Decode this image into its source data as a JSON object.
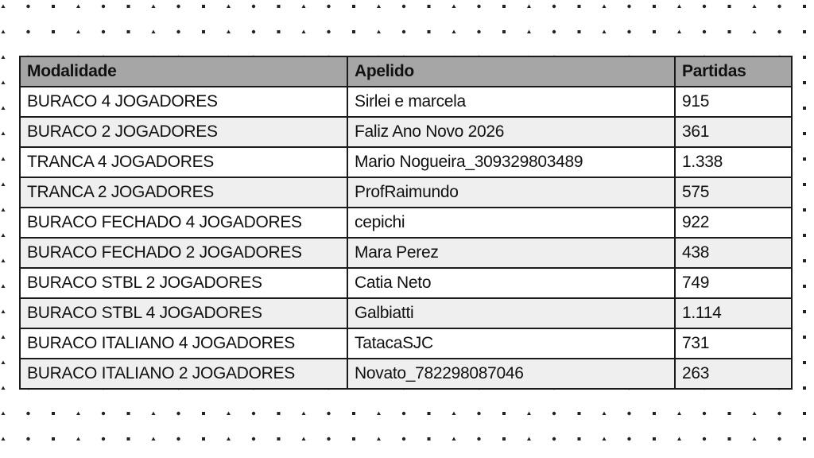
{
  "table": {
    "headers": [
      "Modalidade",
      "Apelido",
      "Partidas"
    ],
    "rows": [
      [
        "BURACO 4 JOGADORES",
        "Sirlei e marcela",
        "915"
      ],
      [
        "BURACO 2 JOGADORES",
        "Faliz Ano Novo 2026",
        "361"
      ],
      [
        "TRANCA 4 JOGADORES",
        "Mario Nogueira_309329803489",
        "1.338"
      ],
      [
        "TRANCA 2 JOGADORES",
        "ProfRaimundo",
        "575"
      ],
      [
        "BURACO FECHADO 4 JOGADORES",
        "cepichi",
        "922"
      ],
      [
        "BURACO FECHADO 2 JOGADORES",
        "Mara Perez",
        "438"
      ],
      [
        "BURACO STBL 2 JOGADORES",
        "Catia Neto",
        "749"
      ],
      [
        "BURACO STBL 4 JOGADORES",
        "Galbiatti",
        "1.114"
      ],
      [
        "BURACO ITALIANO 4 JOGADORES",
        "TatacaSJC",
        "731"
      ],
      [
        "BURACO ITALIANO 2 JOGADORES",
        "Novato_782298087046",
        "263"
      ]
    ]
  },
  "colors": {
    "header_bg": "#a6a6a6",
    "alt_row_bg": "#efefef",
    "border": "#1a1a1a"
  }
}
